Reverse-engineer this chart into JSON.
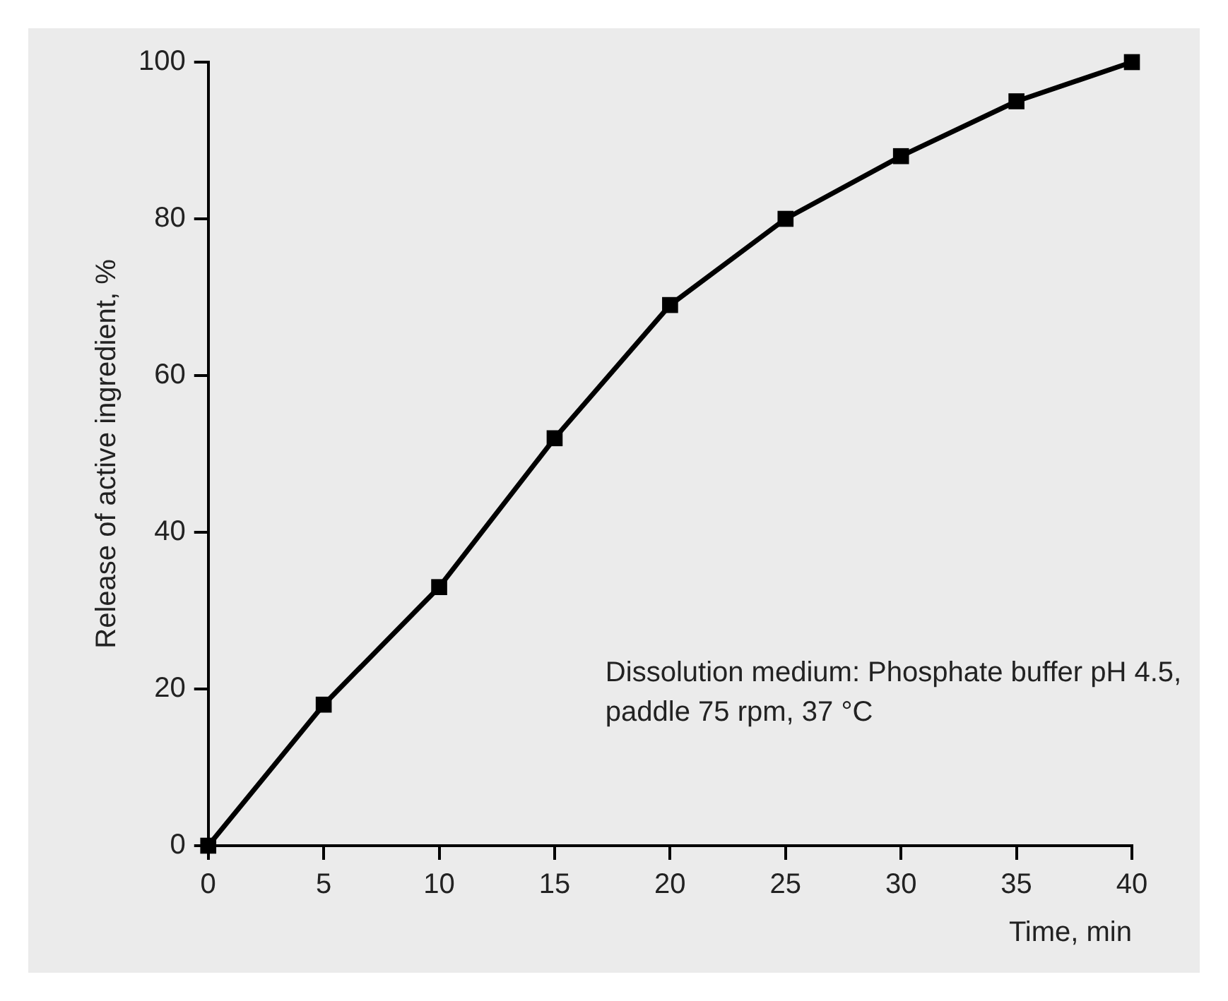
{
  "chart_data": {
    "type": "line",
    "xlabel": "Time, min",
    "ylabel": "Release of active ingredient, %",
    "x": [
      0,
      5,
      10,
      15,
      20,
      25,
      30,
      35,
      40
    ],
    "series": [
      {
        "color": "#000000",
        "values": [
          0,
          18,
          33,
          52,
          69,
          80,
          88,
          95,
          100
        ]
      }
    ],
    "xlim": [
      0,
      40
    ],
    "xticks": [
      0,
      5,
      10,
      15,
      20,
      25,
      30,
      35,
      40
    ],
    "ylim": [
      0,
      100
    ],
    "yticks": [
      0,
      20,
      40,
      60,
      80,
      100
    ],
    "grid": false,
    "legend": false,
    "marker": "square",
    "line_style": "solid",
    "annotations": [
      "Dissolution medium: Phosphate buffer pH 4.5,\npaddle 75 rpm, 37 °C"
    ]
  }
}
